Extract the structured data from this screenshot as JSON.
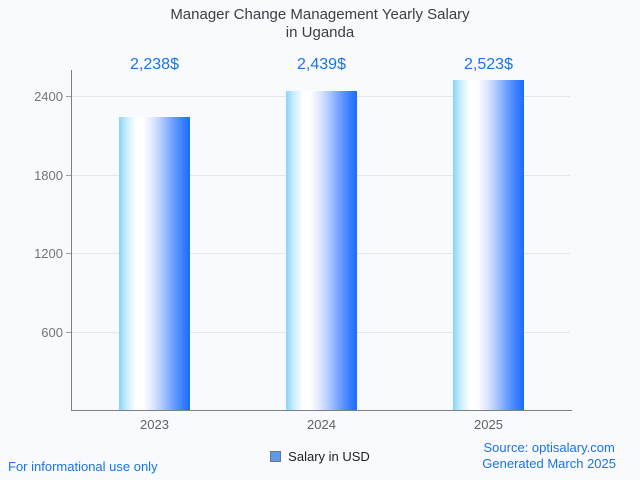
{
  "chart_data": {
    "type": "bar",
    "title": "Manager Change Management Yearly Salary in Uganda",
    "title_lines": [
      "Manager Change Management Yearly Salary",
      "in Uganda"
    ],
    "categories": [
      "2023",
      "2024",
      "2025"
    ],
    "series": [
      {
        "name": "Salary in USD",
        "values": [
          2238,
          2439,
          2523
        ]
      }
    ],
    "value_labels": [
      "2,238$",
      "2,439$",
      "2,523$"
    ],
    "yticks": [
      600,
      1200,
      1800,
      2400
    ],
    "ylim": [
      0,
      2600
    ],
    "xlabel": "",
    "ylabel": "",
    "grid": "horizontal-only",
    "legend_position": "bottom-center"
  },
  "legend": {
    "label": "Salary in USD"
  },
  "footer": {
    "left": "For informational use only",
    "source": "Source: optisalary.com",
    "generated": "Generated March 2025"
  },
  "colors": {
    "background": "#f8fafd",
    "accent_blue": "#1a73e8",
    "bar_gradient_left": "#86d4f9",
    "bar_gradient_mid": "#ffffff",
    "bar_gradient_right": "#1a6dff",
    "legend_swatch": "#5b9bea",
    "axis": "#7f7f7f",
    "gridline": "#e4e7ea",
    "title_text": "#3c4043",
    "tick_text": "#757575",
    "category_text": "#5f6368"
  }
}
